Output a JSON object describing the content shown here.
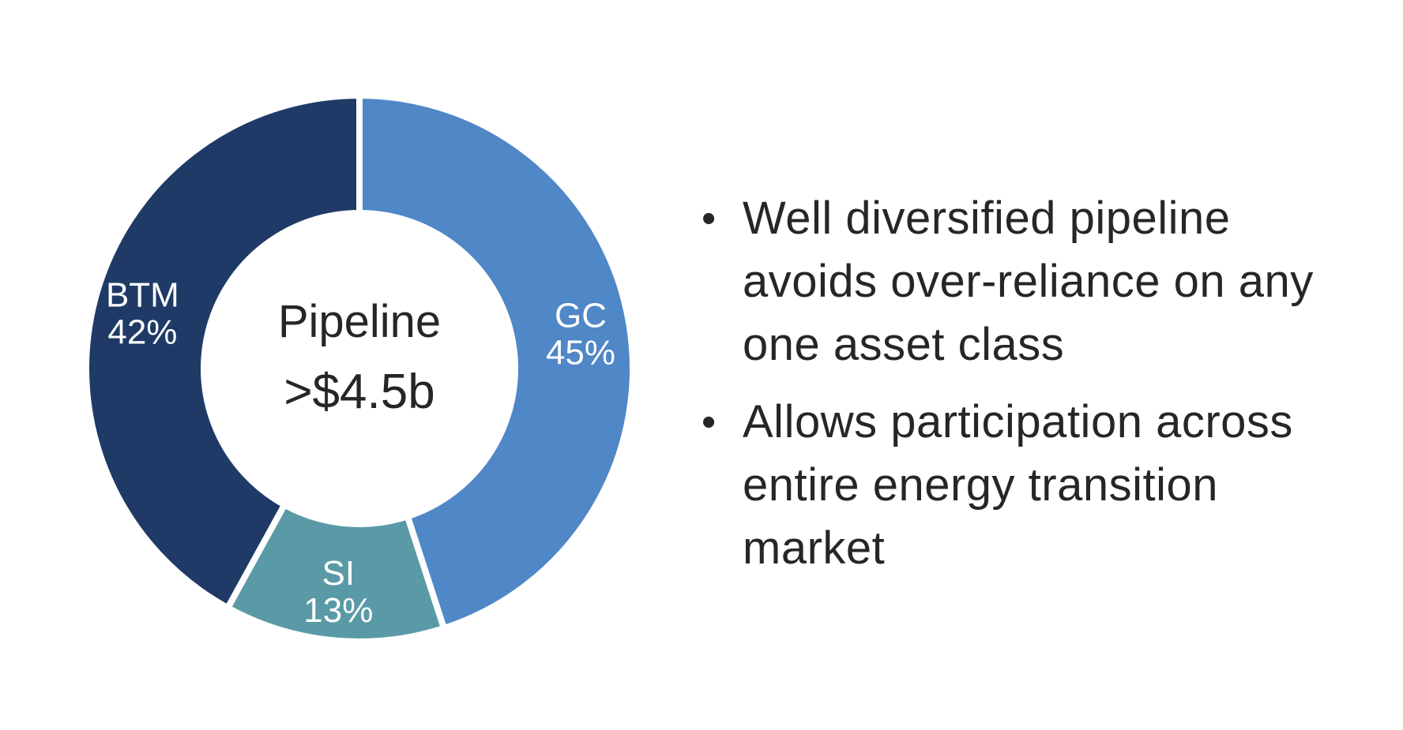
{
  "page": {
    "background_color": "#ffffff"
  },
  "chart_data": {
    "type": "pie",
    "subtype": "donut",
    "center_label": "Pipeline",
    "center_value": ">$4.5b",
    "start_angle_deg": 0,
    "direction": "clockwise",
    "inner_radius_ratio": 0.57,
    "slice_gap_color": "#ffffff",
    "label_color": "#ffffff",
    "center_text_color": "#262626",
    "categories": [
      "GC",
      "SI",
      "BTM"
    ],
    "values": [
      45,
      13,
      42
    ],
    "slices": [
      {
        "label": "GC",
        "value": 45,
        "pct_label": "45%",
        "color": "#4f87c7"
      },
      {
        "label": "SI",
        "value": 13,
        "pct_label": "13%",
        "color": "#599aa6"
      },
      {
        "label": "BTM",
        "value": 42,
        "pct_label": "42%",
        "color": "#1f3a66"
      }
    ]
  },
  "content": {
    "bullet_char": "•",
    "text_color": "#262626",
    "bullets": [
      {
        "text": "Well diversified pipeline avoids over-reliance on any one asset class"
      },
      {
        "text": "Allows participation across entire energy transition market"
      }
    ]
  }
}
